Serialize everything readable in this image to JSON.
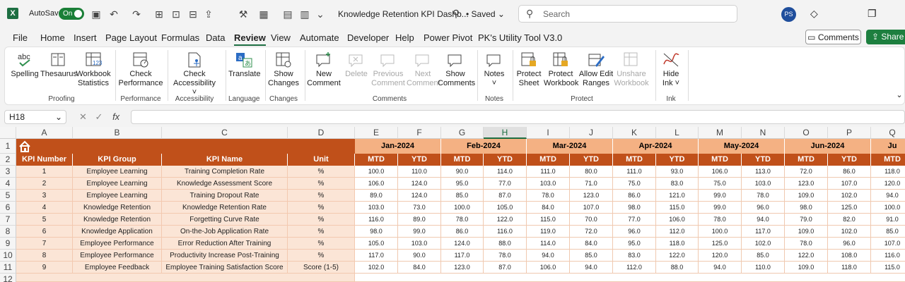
{
  "titlebar": {
    "app_icon": "X",
    "autosave_label": "AutoSave",
    "autosave_state": "On",
    "doc_title": "Knowledge Retention KPI Dashb...",
    "saved_status": "• Saved",
    "search_placeholder": "Search",
    "avatar_initials": "PS"
  },
  "menu": {
    "tabs": [
      "File",
      "Home",
      "Insert",
      "Page Layout",
      "Formulas",
      "Data",
      "Review",
      "View",
      "Automate",
      "Developer",
      "Help",
      "Power Pivot",
      "PK's Utility Tool V3.0"
    ],
    "active": "Review",
    "comments_button": "Comments",
    "share_button": "Share"
  },
  "ribbon": {
    "buttons": {
      "spelling": "Spelling",
      "thesaurus": "Thesaurus",
      "workbook_statistics_1": "Workbook",
      "workbook_statistics_2": "Statistics",
      "check_performance_1": "Check",
      "check_performance_2": "Performance",
      "check_accessibility_1": "Check",
      "check_accessibility_2": "Accessibility ˅",
      "translate": "Translate",
      "show_changes_1": "Show",
      "show_changes_2": "Changes",
      "new_comment_1": "New",
      "new_comment_2": "Comment",
      "delete": "Delete",
      "previous_comment_1": "Previous",
      "previous_comment_2": "Comment",
      "next_comment_1": "Next",
      "next_comment_2": "Comment",
      "show_comments_1": "Show",
      "show_comments_2": "Comments",
      "notes_1": "Notes",
      "notes_2": "˅",
      "protect_sheet_1": "Protect",
      "protect_sheet_2": "Sheet",
      "protect_workbook_1": "Protect",
      "protect_workbook_2": "Workbook",
      "allow_edit_ranges_1": "Allow Edit",
      "allow_edit_ranges_2": "Ranges",
      "unshare_workbook_1": "Unshare",
      "unshare_workbook_2": "Workbook",
      "hide_ink_1": "Hide",
      "hide_ink_2": "Ink ˅"
    },
    "groups": {
      "proofing": "Proofing",
      "performance": "Performance",
      "accessibility": "Accessibility",
      "language": "Language",
      "changes": "Changes",
      "comments": "Comments",
      "notes": "Notes",
      "protect": "Protect",
      "ink": "Ink"
    }
  },
  "formula_bar": {
    "name_box": "H18",
    "fx": "fx",
    "formula": ""
  },
  "sheet": {
    "columns": [
      "A",
      "B",
      "C",
      "D",
      "E",
      "F",
      "G",
      "H",
      "I",
      "J",
      "K",
      "L",
      "M",
      "N",
      "O",
      "P",
      "Q"
    ],
    "selected_column": "H",
    "rows": [
      "1",
      "2",
      "3",
      "4",
      "5",
      "6",
      "7",
      "8",
      "9",
      "10",
      "11",
      "12"
    ],
    "months": [
      "Jan-2024",
      "Feb-2024",
      "Mar-2024",
      "Apr-2024",
      "May-2024",
      "Jun-2024",
      "Ju"
    ],
    "headers": [
      "KPI Number",
      "KPI Group",
      "KPI Name",
      "Unit"
    ],
    "mtd": "MTD",
    "ytd": "YTD",
    "kpis": [
      {
        "num": "1",
        "group": "Employee Learning",
        "name": "Training Completion Rate",
        "unit": "%",
        "vals": [
          "100.0",
          "110.0",
          "90.0",
          "114.0",
          "111.0",
          "80.0",
          "111.0",
          "93.0",
          "106.0",
          "113.0",
          "72.0",
          "86.0",
          "118.0"
        ]
      },
      {
        "num": "2",
        "group": "Employee Learning",
        "name": "Knowledge Assessment Score",
        "unit": "%",
        "vals": [
          "106.0",
          "124.0",
          "95.0",
          "77.0",
          "103.0",
          "71.0",
          "75.0",
          "83.0",
          "75.0",
          "103.0",
          "123.0",
          "107.0",
          "120.0"
        ]
      },
      {
        "num": "3",
        "group": "Employee Learning",
        "name": "Training Dropout Rate",
        "unit": "%",
        "vals": [
          "89.0",
          "124.0",
          "85.0",
          "87.0",
          "78.0",
          "123.0",
          "86.0",
          "121.0",
          "99.0",
          "78.0",
          "109.0",
          "102.0",
          "94.0"
        ]
      },
      {
        "num": "4",
        "group": "Knowledge Retention",
        "name": "Knowledge Retention Rate",
        "unit": "%",
        "vals": [
          "103.0",
          "73.0",
          "100.0",
          "105.0",
          "84.0",
          "107.0",
          "98.0",
          "115.0",
          "99.0",
          "96.0",
          "98.0",
          "125.0",
          "100.0"
        ]
      },
      {
        "num": "5",
        "group": "Knowledge Retention",
        "name": "Forgetting Curve Rate",
        "unit": "%",
        "vals": [
          "116.0",
          "89.0",
          "78.0",
          "122.0",
          "115.0",
          "70.0",
          "77.0",
          "106.0",
          "78.0",
          "94.0",
          "79.0",
          "82.0",
          "91.0"
        ]
      },
      {
        "num": "6",
        "group": "Knowledge Application",
        "name": "On-the-Job Application Rate",
        "unit": "%",
        "vals": [
          "98.0",
          "99.0",
          "86.0",
          "116.0",
          "119.0",
          "72.0",
          "96.0",
          "112.0",
          "100.0",
          "117.0",
          "109.0",
          "102.0",
          "85.0"
        ]
      },
      {
        "num": "7",
        "group": "Employee Performance",
        "name": "Error Reduction After Training",
        "unit": "%",
        "vals": [
          "105.0",
          "103.0",
          "124.0",
          "88.0",
          "114.0",
          "84.0",
          "95.0",
          "118.0",
          "125.0",
          "102.0",
          "78.0",
          "96.0",
          "107.0"
        ]
      },
      {
        "num": "8",
        "group": "Employee Performance",
        "name": "Productivity Increase Post-Training",
        "unit": "%",
        "vals": [
          "117.0",
          "90.0",
          "117.0",
          "78.0",
          "94.0",
          "85.0",
          "83.0",
          "122.0",
          "120.0",
          "85.0",
          "122.0",
          "108.0",
          "116.0"
        ]
      },
      {
        "num": "9",
        "group": "Employee Feedback",
        "name": "Employee Training Satisfaction Score",
        "unit": "Score (1-5)",
        "vals": [
          "102.0",
          "84.0",
          "123.0",
          "87.0",
          "106.0",
          "94.0",
          "112.0",
          "88.0",
          "94.0",
          "110.0",
          "109.0",
          "118.0",
          "115.0"
        ]
      }
    ]
  },
  "colors": {
    "excel_green": "#1d6f42",
    "header_orange": "#c0501a",
    "month_peach": "#f4b183",
    "body_peach": "#fbe5d6"
  }
}
